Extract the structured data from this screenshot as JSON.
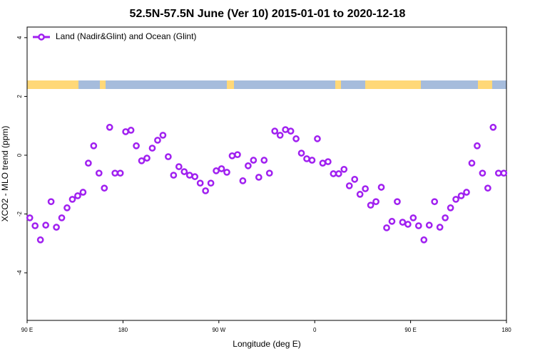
{
  "chart_data": {
    "type": "line",
    "title": "52.5N-57.5N June (Ver 10)   2015-01-01 to 2020-12-18",
    "x_label": "Longitude (deg E)",
    "y_label": "XCO2 - MLO trend (ppm)",
    "x": [
      92.5,
      97.5,
      102.5,
      107.5,
      112.5,
      117.5,
      122.5,
      127.5,
      132.5,
      137.5,
      142.5,
      147.5,
      152.5,
      157.5,
      162.5,
      167.5,
      172.5,
      177.5,
      182.5,
      187.5,
      192.5,
      197.5,
      202.5,
      207.5,
      212.5,
      217.5,
      222.5,
      227.5,
      232.5,
      237.5,
      242.5,
      247.5,
      252.5,
      257.5,
      262.5,
      267.5,
      272.5,
      277.5,
      282.5,
      287.5,
      292.5,
      297.5,
      302.5,
      307.5,
      312.5,
      317.5,
      322.5,
      327.5,
      332.5,
      337.5,
      342.5,
      347.5,
      352.5,
      357.5,
      362.5,
      367.5,
      372.5,
      377.5,
      382.5,
      387.5,
      392.5,
      397.5,
      402.5,
      407.5,
      412.5,
      417.5,
      422.5,
      427.5,
      432.5,
      437.5,
      442.5,
      447.5,
      452.5,
      457.5,
      462.5,
      467.5,
      472.5,
      477.5,
      482.5,
      487.5,
      492.5,
      497.5,
      502.5,
      507.5,
      512.5,
      517.5,
      522.5,
      527.5,
      532.5,
      537.5
    ],
    "series": [
      {
        "name": "Land (Nadir&Glint) and Ocean (Glint)",
        "color": "#a020f0",
        "values": [
          -2.13,
          -2.4,
          -2.88,
          -2.38,
          -1.58,
          -2.45,
          -2.13,
          -1.79,
          -1.5,
          -1.38,
          -1.26,
          -0.27,
          0.32,
          -0.61,
          -1.12,
          0.95,
          -0.61,
          -0.61,
          0.8,
          0.85,
          0.32,
          -0.19,
          -0.1,
          0.24,
          0.51,
          0.68,
          -0.05,
          -0.68,
          -0.39,
          -0.56,
          -0.68,
          -0.73,
          -0.95,
          -1.21,
          -0.95,
          -0.53,
          -0.46,
          -0.58,
          -0.02,
          0.02,
          -0.87,
          -0.36,
          -0.17,
          -0.75,
          -0.17,
          -0.61,
          0.82,
          0.68,
          0.87,
          0.82,
          0.56,
          0.07,
          -0.12,
          -0.17,
          0.56,
          -0.27,
          -0.22,
          -0.63,
          -0.63,
          -0.48,
          -1.04,
          -0.82,
          -1.33,
          -1.14,
          -1.7,
          -1.58,
          -1.09,
          -2.47,
          -2.25,
          -1.58,
          -2.28,
          -2.35,
          -2.13,
          -2.4,
          -2.88,
          -2.38,
          -1.58,
          -2.45,
          -2.13,
          -1.79,
          -1.5,
          -1.38,
          -1.26,
          -0.27,
          0.32,
          -0.61,
          -1.12,
          0.95,
          -0.61,
          -0.61
        ]
      }
    ],
    "xlim": [
      90,
      540
    ],
    "xticks": [
      {
        "value": 90,
        "label": "90 E"
      },
      180,
      {
        "value": 270,
        "label": "90 W"
      },
      {
        "value": 360,
        "label": "0"
      },
      {
        "value": 450,
        "label": "90 E"
      },
      {
        "value": 540,
        "label": "180"
      }
    ],
    "ylim": [
      -5.62,
      4.36
    ],
    "yticks": [
      -4,
      -2,
      0,
      2,
      4
    ],
    "legend": "topleft"
  }
}
